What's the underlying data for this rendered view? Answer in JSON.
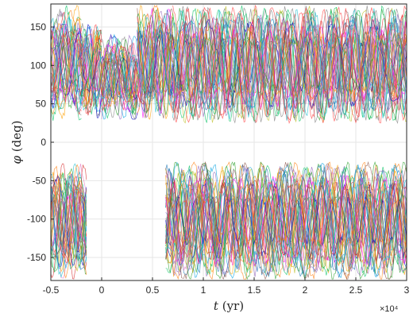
{
  "chart_data": {
    "type": "line",
    "title": "",
    "xlabel": "t (yr)",
    "ylabel": "φ (deg)",
    "x_tick_labels": [
      "-0.5",
      "0",
      "0.5",
      "1",
      "1.5",
      "2",
      "2.5",
      "3"
    ],
    "x_tick_values": [
      -0.5,
      0,
      0.5,
      1,
      1.5,
      2,
      2.5,
      3
    ],
    "x_exponent_label": "×10⁴",
    "y_tick_labels": [
      "150",
      "100",
      "50",
      "0",
      "-50",
      "-100",
      "-150"
    ],
    "y_tick_values": [
      150,
      100,
      50,
      0,
      -50,
      -100,
      -150
    ],
    "xlim": [
      -0.5,
      3
    ],
    "ylim": [
      -180,
      180
    ],
    "x_units_scale": 10000,
    "grid": true,
    "legend": "none",
    "series_count_approx": 40,
    "description_of_data": "many oscillating resonant-angle trajectories; upper band between about 25 and 180 deg, lower band between about -180 and -25 deg",
    "series_colors": [
      "#1f77b4",
      "#ff7f0e",
      "#2ca02c",
      "#d62728",
      "#9467bd",
      "#8c564b",
      "#e377c2",
      "#17becf",
      "#bcbd22",
      "#7f7f7f",
      "#00a0e0",
      "#ff00ff",
      "#00c060",
      "#ff4040",
      "#0000c0",
      "#ffa000"
    ],
    "envelopes": {
      "upper": [
        {
          "x": [
            -0.5,
            -0.2
          ],
          "min": 28,
          "max": 178
        },
        {
          "x": [
            -0.2,
            0.0
          ],
          "min": 32,
          "max": 155
        },
        {
          "x": [
            0.0,
            0.35
          ],
          "min": 30,
          "max": 140
        },
        {
          "x": [
            0.35,
            0.7
          ],
          "min": 30,
          "max": 178
        },
        {
          "x": [
            0.7,
            3.0
          ],
          "min": 25,
          "max": 178
        }
      ],
      "lower": [
        {
          "x": [
            -0.5,
            -0.15
          ],
          "min": -178,
          "max": -28
        },
        {
          "x": [
            0.63,
            3.0
          ],
          "min": -178,
          "max": -26
        }
      ]
    }
  }
}
